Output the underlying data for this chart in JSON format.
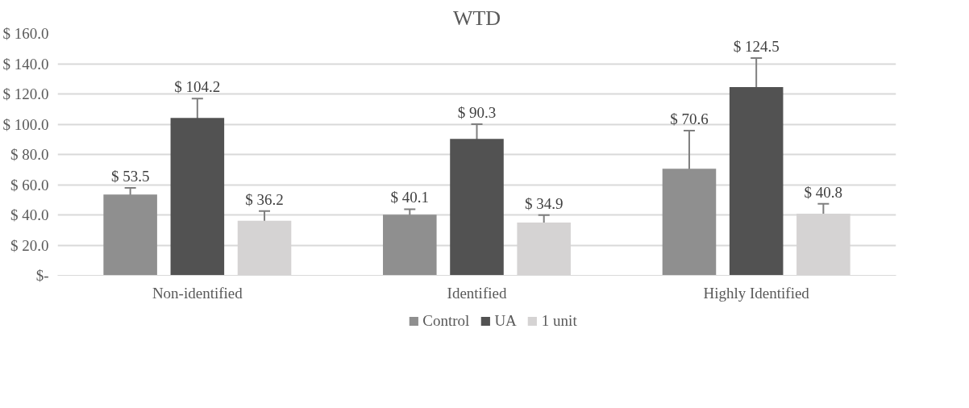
{
  "chart_data": {
    "type": "bar",
    "title": "WTD",
    "categories": [
      "Non-identified",
      "Identified",
      "Highly Identified"
    ],
    "series": [
      {
        "name": "Control",
        "color": "#8f8f8f",
        "values": [
          53.5,
          40.1,
          70.6
        ],
        "errors": [
          4.4,
          3.7,
          25.1
        ],
        "value_labels": [
          "$ 53.5",
          "$ 40.1",
          "$ 70.6"
        ]
      },
      {
        "name": "UA",
        "color": "#525252",
        "values": [
          104.2,
          90.3,
          124.5
        ],
        "errors": [
          12.7,
          9.7,
          19.2
        ],
        "value_labels": [
          "$ 104.2",
          "$ 90.3",
          "$ 124.5"
        ]
      },
      {
        "name": "1 unit",
        "color": "#d5d3d3",
        "values": [
          36.2,
          34.9,
          40.8
        ],
        "errors": [
          6.4,
          5.0,
          6.5
        ],
        "value_labels": [
          "$ 36.2",
          "$ 34.9",
          "$ 40.8"
        ]
      }
    ],
    "ylim": [
      0,
      160
    ],
    "yticks": [
      {
        "value": 0,
        "label": "$-"
      },
      {
        "value": 20,
        "label": "$ 20.0"
      },
      {
        "value": 40,
        "label": "$ 40.0"
      },
      {
        "value": 60,
        "label": "$ 60.0"
      },
      {
        "value": 80,
        "label": "$ 80.0"
      },
      {
        "value": 100,
        "label": "$ 100.0"
      },
      {
        "value": 120,
        "label": "$ 120.0"
      },
      {
        "value": 140,
        "label": "$ 140.0"
      },
      {
        "value": 160,
        "label": "$ 160.0"
      }
    ],
    "grid": "y",
    "legend": "bottom"
  }
}
